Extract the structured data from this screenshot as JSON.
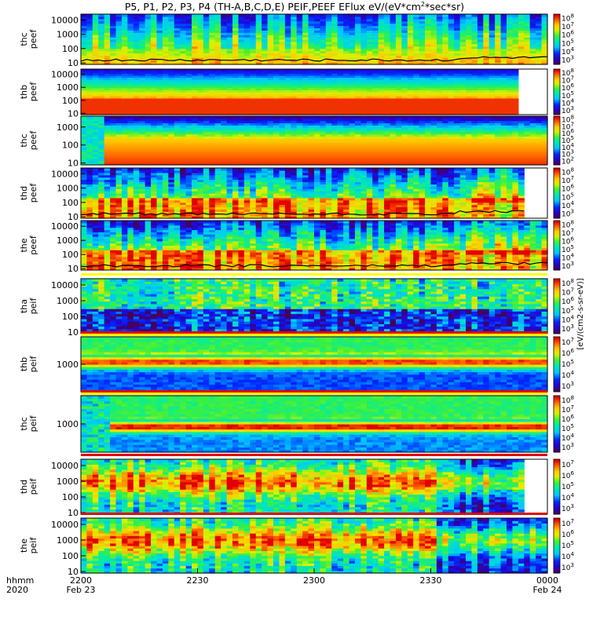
{
  "title": "P5, P1, P2, P3, P4 (TH-A,B,C,D,E) PEIF,PEEF EFlux eV/(eV*cm",
  "title_sup": "2",
  "title_tail": "*sec*sr)",
  "colorbar_label": "[eV/(cm2-s-sr-eV)]",
  "colors": {
    "frame": "#000000",
    "flag_red": "#e00000",
    "flag_yellow": "#ffff00"
  },
  "chart_data": {
    "type": "heatmap",
    "x_axis": {
      "label_line1": "hhmm",
      "label_line2": "2020",
      "ticks": [
        {
          "hhmm": "2200",
          "date": "Feb 23",
          "minutes": 0
        },
        {
          "hhmm": "2230",
          "date": "",
          "minutes": 30
        },
        {
          "hhmm": "2300",
          "date": "",
          "minutes": 60
        },
        {
          "hhmm": "2330",
          "date": "",
          "minutes": 90
        },
        {
          "hhmm": "0000",
          "date": "Feb 24",
          "minutes": 120
        }
      ],
      "range_minutes": [
        0,
        120
      ]
    },
    "panels": [
      {
        "probe": "thc",
        "product": "peef",
        "y_ticks": [
          "10000",
          "1000",
          "100",
          "10"
        ],
        "y_range_log": [
          0.9,
          4.4
        ],
        "cb_range_exp": [
          3,
          8
        ],
        "profile": "eeb",
        "data_end": 1.0,
        "has_line": true
      },
      {
        "probe": "thb",
        "product": "peef",
        "y_ticks": [
          "10000",
          "1000",
          "100",
          "10"
        ],
        "y_range_log": [
          0.9,
          4.4
        ],
        "cb_range_exp": [
          3,
          8
        ],
        "profile": "eeb2",
        "data_end": 0.945,
        "has_line": false
      },
      {
        "probe": "thc",
        "product": "peef",
        "y_ticks": [
          "1000",
          "100",
          "10"
        ],
        "y_range_log": [
          0.9,
          3.6
        ],
        "cb_range_exp": [
          2,
          8
        ],
        "profile": "eeb3",
        "data_end": 1.0,
        "has_line": false
      },
      {
        "probe": "thd",
        "product": "peef",
        "y_ticks": [
          "10000",
          "1000",
          "100",
          "10"
        ],
        "y_range_log": [
          0.9,
          4.4
        ],
        "cb_range_exp": [
          3,
          8
        ],
        "profile": "eed",
        "data_end": 0.96,
        "has_line": true
      },
      {
        "probe": "the",
        "product": "peef",
        "y_ticks": [
          "10000",
          "1000",
          "100",
          "10"
        ],
        "y_range_log": [
          0.9,
          4.4
        ],
        "cb_range_exp": [
          3,
          8
        ],
        "profile": "eed",
        "data_end": 1.0,
        "has_line": true
      },
      {
        "probe": "tha",
        "product": "peif",
        "y_ticks": [
          "10000",
          "1000",
          "100",
          "10"
        ],
        "y_range_log": [
          0.9,
          4.4
        ],
        "cb_range_exp": [
          3,
          8
        ],
        "profile": "ion_a",
        "data_end": 1.0,
        "has_line": false
      },
      {
        "probe": "thb",
        "product": "peif",
        "y_ticks": [
          "1000"
        ],
        "y_range_log": [
          2.0,
          4.0
        ],
        "cb_range_exp": [
          3,
          7
        ],
        "profile": "ion_b",
        "data_end": 1.0,
        "has_line": false
      },
      {
        "probe": "thc",
        "product": "peif",
        "y_ticks": [
          "1000"
        ],
        "y_range_log": [
          2.0,
          4.0
        ],
        "cb_range_exp": [
          3,
          8
        ],
        "profile": "ion_c",
        "data_end": 1.0,
        "has_line": false
      },
      {
        "probe": "thd",
        "product": "peif",
        "y_ticks": [
          "10000",
          "1000",
          "100",
          "10"
        ],
        "y_range_log": [
          0.9,
          4.4
        ],
        "cb_range_exp": [
          3,
          7
        ],
        "profile": "ion_d",
        "data_end": 0.96,
        "has_line": false
      },
      {
        "probe": "the",
        "product": "peif",
        "y_ticks": [
          "10000",
          "1000",
          "100",
          "10"
        ],
        "y_range_log": [
          0.9,
          4.4
        ],
        "cb_range_exp": [
          3,
          7
        ],
        "profile": "ion_d",
        "data_end": 1.0,
        "has_line": false
      }
    ]
  }
}
